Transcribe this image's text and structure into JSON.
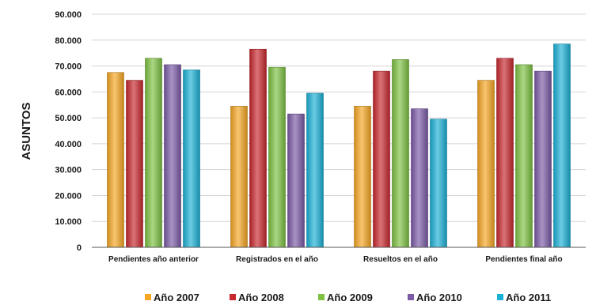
{
  "chart_data": {
    "type": "bar",
    "title": "",
    "xlabel": "",
    "ylabel": "ASUNTOS",
    "ylim": [
      0,
      90000
    ],
    "yticks": [
      0,
      10000,
      20000,
      30000,
      40000,
      50000,
      60000,
      70000,
      80000,
      90000
    ],
    "ytick_labels": [
      "0",
      "10.000",
      "20.000",
      "30.000",
      "40.000",
      "50.000",
      "60.000",
      "70.000",
      "80.000",
      "90.000"
    ],
    "grid": true,
    "legend_position": "bottom",
    "categories": [
      "Pendientes año anterior",
      "Registrados en el año",
      "Resueltos en el año",
      "Pendientes final año"
    ],
    "series": [
      {
        "name": "Año 2007",
        "color": "#f5a623",
        "values": [
          67500,
          54500,
          54500,
          64500
        ]
      },
      {
        "name": "Año 2008",
        "color": "#c8282e",
        "values": [
          64500,
          76500,
          68000,
          73000
        ]
      },
      {
        "name": "Año 2009",
        "color": "#7dc142",
        "values": [
          73000,
          69500,
          72500,
          70500
        ]
      },
      {
        "name": "Año 2010",
        "color": "#7b5aa6",
        "values": [
          70500,
          51500,
          53500,
          68000
        ]
      },
      {
        "name": "Año 2011",
        "color": "#1bb0d6",
        "values": [
          68500,
          59500,
          49500,
          78500
        ]
      }
    ]
  }
}
